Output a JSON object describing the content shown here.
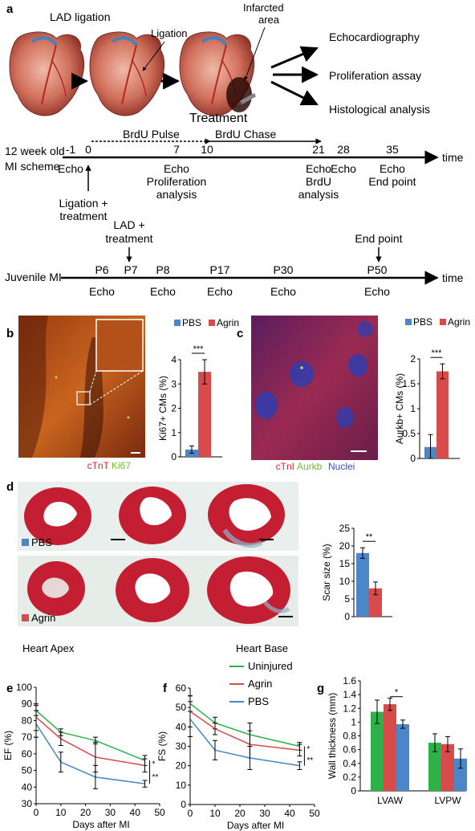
{
  "panel_a": {
    "label": "a",
    "lad_ligation": "LAD ligation",
    "ligation": "Ligation",
    "infarcted_area": [
      "Infarcted",
      "area"
    ],
    "treatment": "Treatment",
    "outcomes": [
      "Echocardiography",
      "Proliferation assay",
      "Histological analysis"
    ],
    "adult_scheme": {
      "name": [
        "12 week old",
        "MI scheme"
      ],
      "axis_label": "time",
      "brdu_pulse": "BrdU Pulse",
      "brdu_chase": "BrdU Chase",
      "days": [
        "-1",
        "0",
        "7",
        "10",
        "21",
        "28",
        "35"
      ],
      "echo": "Echo",
      "ligation_treatment": [
        "Ligation +",
        "treatment"
      ],
      "proliferation_analysis": [
        "Proliferation",
        "analysis"
      ],
      "brdu_analysis": [
        "BrdU",
        "analysis"
      ],
      "end_point": "End point"
    },
    "juvenile_scheme": {
      "name": "Juvenile MI",
      "axis_label": "time",
      "days": [
        "P6",
        "P7",
        "P8",
        "P17",
        "P30",
        "P50"
      ],
      "echo": "Echo",
      "lad_treatment": [
        "LAD +",
        "treatment"
      ],
      "end_point": "End point"
    }
  },
  "panel_b": {
    "label": "b",
    "stain_labels": [
      "cTnT",
      "Ki67"
    ],
    "stain_colors": [
      "#d7262c",
      "#6fbf2a"
    ]
  },
  "panel_c": {
    "label": "c",
    "stain_labels": [
      "cTnI",
      "Aurkb",
      "Nuclei"
    ],
    "stain_colors": [
      "#d7262c",
      "#6fbf2a",
      "#3a4fc4"
    ]
  },
  "panel_d": {
    "label": "d",
    "row_labels": [
      "PBS",
      "Agrin"
    ],
    "heart_apex": "Heart Apex",
    "heart_base": "Heart Base"
  },
  "panel_e": {
    "label": "e"
  },
  "panel_f": {
    "label": "f"
  },
  "panel_g": {
    "label": "g"
  },
  "colors": {
    "pbs": "#4a86c8",
    "agrin": "#d94a4a",
    "uninjured": "#2db24a"
  },
  "chart_data": [
    {
      "id": "b",
      "type": "bar",
      "categories": [
        "PBS",
        "Agrin"
      ],
      "values": [
        0.3,
        3.5
      ],
      "errors": [
        0.15,
        0.5
      ],
      "legend": [
        "PBS",
        "Agrin"
      ],
      "legend_position": "top",
      "ylabel": "Ki67+ CMs (%)",
      "ylim": [
        0,
        4
      ],
      "yticks": [
        "0",
        "1",
        "2",
        "3",
        "4"
      ],
      "significance": "***"
    },
    {
      "id": "c",
      "type": "bar",
      "categories": [
        "PBS",
        "Agrin"
      ],
      "values": [
        0.23,
        1.75
      ],
      "errors": [
        0.25,
        0.15
      ],
      "legend": [
        "PBS",
        "Agrin"
      ],
      "legend_position": "top",
      "ylabel": "Aurkb+ CMs (%)",
      "ylim": [
        0,
        2
      ],
      "yticks": [
        "0",
        "0.5",
        "1",
        "1.5",
        "2"
      ],
      "significance": "***"
    },
    {
      "id": "d",
      "type": "bar",
      "categories": [
        "PBS",
        "Agrin"
      ],
      "values": [
        18,
        8
      ],
      "errors": [
        1.5,
        1.8
      ],
      "ylabel": "Scar size (%)",
      "ylim": [
        0,
        25
      ],
      "yticks": [
        "0",
        "5",
        "10",
        "15",
        "20",
        "25"
      ],
      "significance": "**"
    },
    {
      "id": "e",
      "type": "line",
      "xlabel": "Days after MI",
      "ylabel": "EF (%)",
      "xlim": [
        0,
        50
      ],
      "ylim": [
        30,
        100
      ],
      "xticks": [
        "0",
        "10",
        "20",
        "30",
        "40",
        "50"
      ],
      "yticks": [
        "30",
        "40",
        "50",
        "60",
        "70",
        "80",
        "90",
        "100"
      ],
      "series": [
        {
          "name": "Uninjured",
          "x": [
            0,
            10,
            24,
            44
          ],
          "y": [
            86,
            73,
            68,
            56
          ],
          "err": [
            3,
            2,
            2,
            3
          ]
        },
        {
          "name": "Agrin",
          "x": [
            0,
            10,
            24,
            44
          ],
          "y": [
            82,
            69,
            58,
            53
          ],
          "err": [
            8,
            4,
            9,
            4
          ]
        },
        {
          "name": "PBS",
          "x": [
            0,
            10,
            24,
            44
          ],
          "y": [
            78,
            55,
            46,
            42
          ],
          "err": [
            8,
            6,
            7,
            2
          ]
        }
      ],
      "significance": [
        "*",
        "**"
      ]
    },
    {
      "id": "f",
      "type": "line",
      "xlabel": "Days after MI",
      "ylabel": "FS (%)",
      "xlim": [
        0,
        50
      ],
      "ylim": [
        0,
        60
      ],
      "xticks": [
        "0",
        "10",
        "20",
        "30",
        "40",
        "50"
      ],
      "yticks": [
        "0",
        "10",
        "20",
        "30",
        "40",
        "50",
        "60"
      ],
      "legend": [
        "Uninjured",
        "Agrin",
        "PBS"
      ],
      "legend_position": "top",
      "series": [
        {
          "name": "Uninjured",
          "x": [
            0,
            10,
            24,
            44
          ],
          "y": [
            52,
            42,
            36,
            30
          ],
          "err": [
            4,
            3,
            6,
            2
          ]
        },
        {
          "name": "Agrin",
          "x": [
            0,
            10,
            24,
            44
          ],
          "y": [
            48,
            39,
            31,
            28
          ],
          "err": [
            8,
            3,
            7,
            3
          ]
        },
        {
          "name": "PBS",
          "x": [
            0,
            10,
            24,
            44
          ],
          "y": [
            44,
            28,
            24,
            20
          ],
          "err": [
            9,
            5,
            6,
            2
          ]
        }
      ],
      "significance": [
        "*",
        "**"
      ]
    },
    {
      "id": "g",
      "type": "bar",
      "categories": [
        "LVAW",
        "LVPW"
      ],
      "series": [
        {
          "name": "Uninjured",
          "values": [
            1.15,
            0.7
          ],
          "errors": [
            0.17,
            0.13
          ]
        },
        {
          "name": "Agrin",
          "values": [
            1.26,
            0.68
          ],
          "errors": [
            0.09,
            0.11
          ]
        },
        {
          "name": "PBS",
          "values": [
            0.97,
            0.47
          ],
          "errors": [
            0.06,
            0.14
          ]
        }
      ],
      "ylabel": "Wall thickness (mm)",
      "ylim": [
        0,
        1.6
      ],
      "yticks": [
        "0",
        "0.2",
        "0.4",
        "0.6",
        "0.8",
        "1",
        "1.2",
        "1.4",
        "1.6"
      ],
      "significance": "*"
    }
  ]
}
